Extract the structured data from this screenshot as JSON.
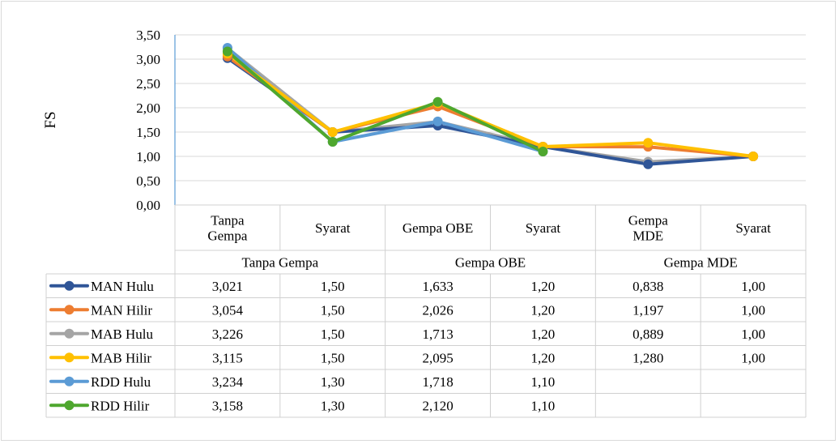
{
  "chart_data": {
    "type": "line",
    "ylabel": "FS",
    "ylim": [
      0,
      3.5
    ],
    "yticks": [
      "0,00",
      "0,50",
      "1,00",
      "1,50",
      "2,00",
      "2,50",
      "3,00",
      "3,50"
    ],
    "grid": true,
    "categories": [
      {
        "lines": [
          "Tanpa",
          "Gempa"
        ]
      },
      {
        "lines": [
          "Syarat"
        ]
      },
      {
        "lines": [
          "Gempa OBE"
        ]
      },
      {
        "lines": [
          "Syarat"
        ]
      },
      {
        "lines": [
          "Gempa",
          "MDE"
        ]
      },
      {
        "lines": [
          "Syarat"
        ]
      }
    ],
    "groups": [
      {
        "label": "Tanpa Gempa"
      },
      {
        "label": "Gempa OBE"
      },
      {
        "label": "Gempa MDE"
      }
    ],
    "series": [
      {
        "name": "MAN Hulu",
        "color": "#2f5597",
        "values": [
          3.021,
          1.5,
          1.633,
          1.2,
          0.838,
          1.0
        ],
        "labels": [
          "3,021",
          "1,50",
          "1,633",
          "1,20",
          "0,838",
          "1,00"
        ]
      },
      {
        "name": "MAN Hilir",
        "color": "#ed7d31",
        "values": [
          3.054,
          1.5,
          2.026,
          1.2,
          1.197,
          1.0
        ],
        "labels": [
          "3,054",
          "1,50",
          "2,026",
          "1,20",
          "1,197",
          "1,00"
        ]
      },
      {
        "name": "MAB Hulu",
        "color": "#a5a5a5",
        "values": [
          3.226,
          1.5,
          1.713,
          1.2,
          0.889,
          1.0
        ],
        "labels": [
          "3,226",
          "1,50",
          "1,713",
          "1,20",
          "0,889",
          "1,00"
        ]
      },
      {
        "name": "MAB Hilir",
        "color": "#ffc000",
        "values": [
          3.115,
          1.5,
          2.095,
          1.2,
          1.28,
          1.0
        ],
        "labels": [
          "3,115",
          "1,50",
          "2,095",
          "1,20",
          "1,280",
          "1,00"
        ]
      },
      {
        "name": "RDD Hulu",
        "color": "#5b9bd5",
        "values": [
          3.234,
          1.3,
          1.718,
          1.1,
          null,
          null
        ],
        "labels": [
          "3,234",
          "1,30",
          "1,718",
          "1,10",
          "",
          ""
        ]
      },
      {
        "name": "RDD Hilir",
        "color": "#4ea72e",
        "values": [
          3.158,
          1.3,
          2.12,
          1.1,
          null,
          null
        ],
        "labels": [
          "3,158",
          "1,30",
          "2,120",
          "1,10",
          "",
          ""
        ]
      }
    ]
  }
}
